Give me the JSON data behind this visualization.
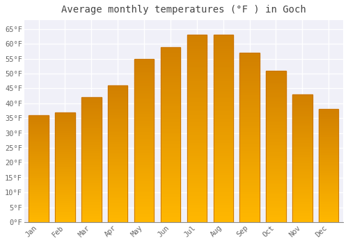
{
  "title": "Average monthly temperatures (°F ) in Goch",
  "months": [
    "Jan",
    "Feb",
    "Mar",
    "Apr",
    "May",
    "Jun",
    "Jul",
    "Aug",
    "Sep",
    "Oct",
    "Nov",
    "Dec"
  ],
  "values": [
    36,
    37,
    42,
    46,
    55,
    59,
    63,
    63,
    57,
    51,
    43,
    38
  ],
  "bar_color_top": "#FFB700",
  "bar_color_bottom": "#FF8C00",
  "bar_edge_color": "#C87000",
  "background_color": "#FFFFFF",
  "plot_bg_color": "#F0F0F8",
  "grid_color": "#FFFFFF",
  "text_color": "#666666",
  "title_color": "#444444",
  "ylim": [
    0,
    68
  ],
  "yticks": [
    0,
    5,
    10,
    15,
    20,
    25,
    30,
    35,
    40,
    45,
    50,
    55,
    60,
    65
  ],
  "title_fontsize": 10,
  "tick_fontsize": 7.5,
  "bar_width": 0.75
}
